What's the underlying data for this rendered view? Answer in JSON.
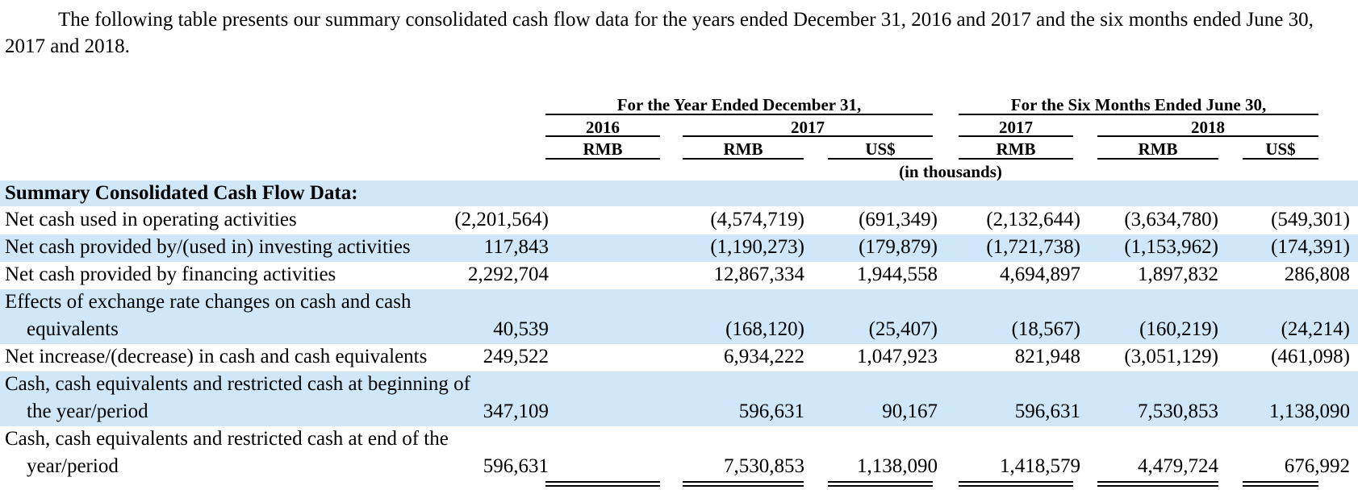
{
  "intro": "The following table presents our summary consolidated cash flow data for the years ended December 31, 2016 and 2017 and the six months ended June 30, 2017 and 2018.",
  "header": {
    "group_year": "For the Year Ended December 31,",
    "group_six": "For the Six Months Ended June 30,",
    "years": [
      "2016",
      "2017",
      "2017",
      "2018"
    ],
    "currencies": [
      "RMB",
      "RMB",
      "US$",
      "RMB",
      "RMB",
      "US$"
    ],
    "units": "(in thousands)"
  },
  "section_title": "Summary Consolidated Cash Flow Data:",
  "rows": [
    {
      "label": "Net cash used in operating activities",
      "values": [
        "(2,201,564)",
        "(4,574,719)",
        "(691,349)",
        "(2,132,644)",
        "(3,634,780)",
        "(549,301)"
      ]
    },
    {
      "label": "Net cash provided by/(used in) investing activities",
      "values": [
        "117,843",
        "(1,190,273)",
        "(179,879)",
        "(1,721,738)",
        "(1,153,962)",
        "(174,391)"
      ]
    },
    {
      "label": "Net cash provided by financing activities",
      "values": [
        "2,292,704",
        "12,867,334",
        "1,944,558",
        "4,694,897",
        "1,897,832",
        "286,808"
      ]
    },
    {
      "label": "Effects of exchange rate changes on cash and cash",
      "label_cont": "equivalents",
      "values": [
        "40,539",
        "(168,120)",
        "(25,407)",
        "(18,567)",
        "(160,219)",
        "(24,214)"
      ]
    },
    {
      "label": "Net increase/(decrease) in cash and cash equivalents",
      "values": [
        "249,522",
        "6,934,222",
        "1,047,923",
        "821,948",
        "(3,051,129)",
        "(461,098)"
      ]
    },
    {
      "label": "Cash, cash equivalents and restricted cash at beginning of",
      "label_cont": "the year/period",
      "values": [
        "347,109",
        "596,631",
        "90,167",
        "596,631",
        "7,530,853",
        "1,138,090"
      ]
    },
    {
      "label": "Cash, cash equivalents and restricted cash at end of the",
      "label_cont": "year/period",
      "values": [
        "596,631",
        "7,530,853",
        "1,138,090",
        "1,418,579",
        "4,479,724",
        "676,992"
      ]
    }
  ]
}
